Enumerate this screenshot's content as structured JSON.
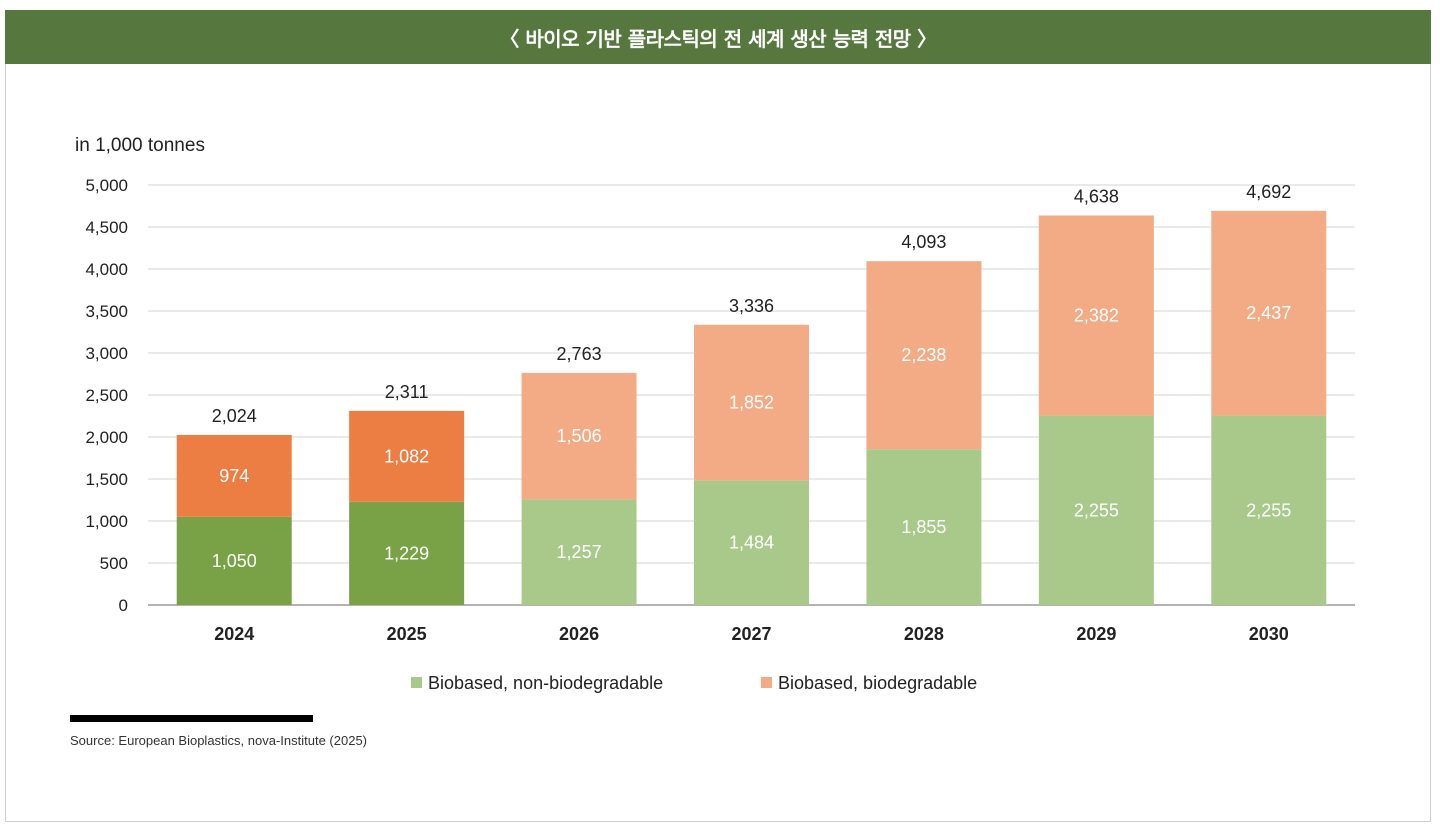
{
  "header": {
    "title": "〈 바이오 기반 플라스틱의 전 세계 생산 능력 전망 〉"
  },
  "chart_data": {
    "type": "bar",
    "stacked": true,
    "unit_label": "in 1,000 tonnes",
    "categories": [
      "2024",
      "2025",
      "2026",
      "2027",
      "2028",
      "2029",
      "2030"
    ],
    "series": [
      {
        "name": "Biobased, non-biodegradable",
        "values": [
          1050,
          1229,
          1257,
          1484,
          1855,
          2255,
          2255
        ],
        "labels": [
          "1,050",
          "1,229",
          "1,257",
          "1,484",
          "1,855",
          "2,255",
          "2,255"
        ]
      },
      {
        "name": "Biobased, biodegradable",
        "values": [
          974,
          1082,
          1506,
          1852,
          2238,
          2382,
          2437
        ],
        "labels": [
          "974",
          "1,082",
          "1,506",
          "1,852",
          "2,238",
          "2,382",
          "2,437"
        ]
      }
    ],
    "totals": [
      "2,024",
      "2,311",
      "2,763",
      "3,336",
      "4,093",
      "4,638",
      "4,692"
    ],
    "ylim": [
      0,
      5000
    ],
    "yticks": [
      0,
      500,
      1000,
      1500,
      2000,
      2500,
      3000,
      3500,
      4000,
      4500,
      5000
    ],
    "ytick_labels": [
      "0",
      "500",
      "1,000",
      "1,500",
      "2,000",
      "2,500",
      "3,000",
      "3,500",
      "4,000",
      "4,500",
      "5,000"
    ],
    "grid": true,
    "legend_position": "bottom-center",
    "colors": {
      "non_bio_actual": "#78a245",
      "non_bio_forecast": "#a9c98b",
      "bio_actual": "#ec7d43",
      "bio_forecast": "#f2ab84",
      "grid": "#d3d3d3",
      "axis": "#9a9a9a",
      "text": "#222222"
    },
    "actual_years": [
      "2024",
      "2025"
    ]
  },
  "source": {
    "text": "Source: European Bioplastics, nova-Institute (2025)"
  }
}
